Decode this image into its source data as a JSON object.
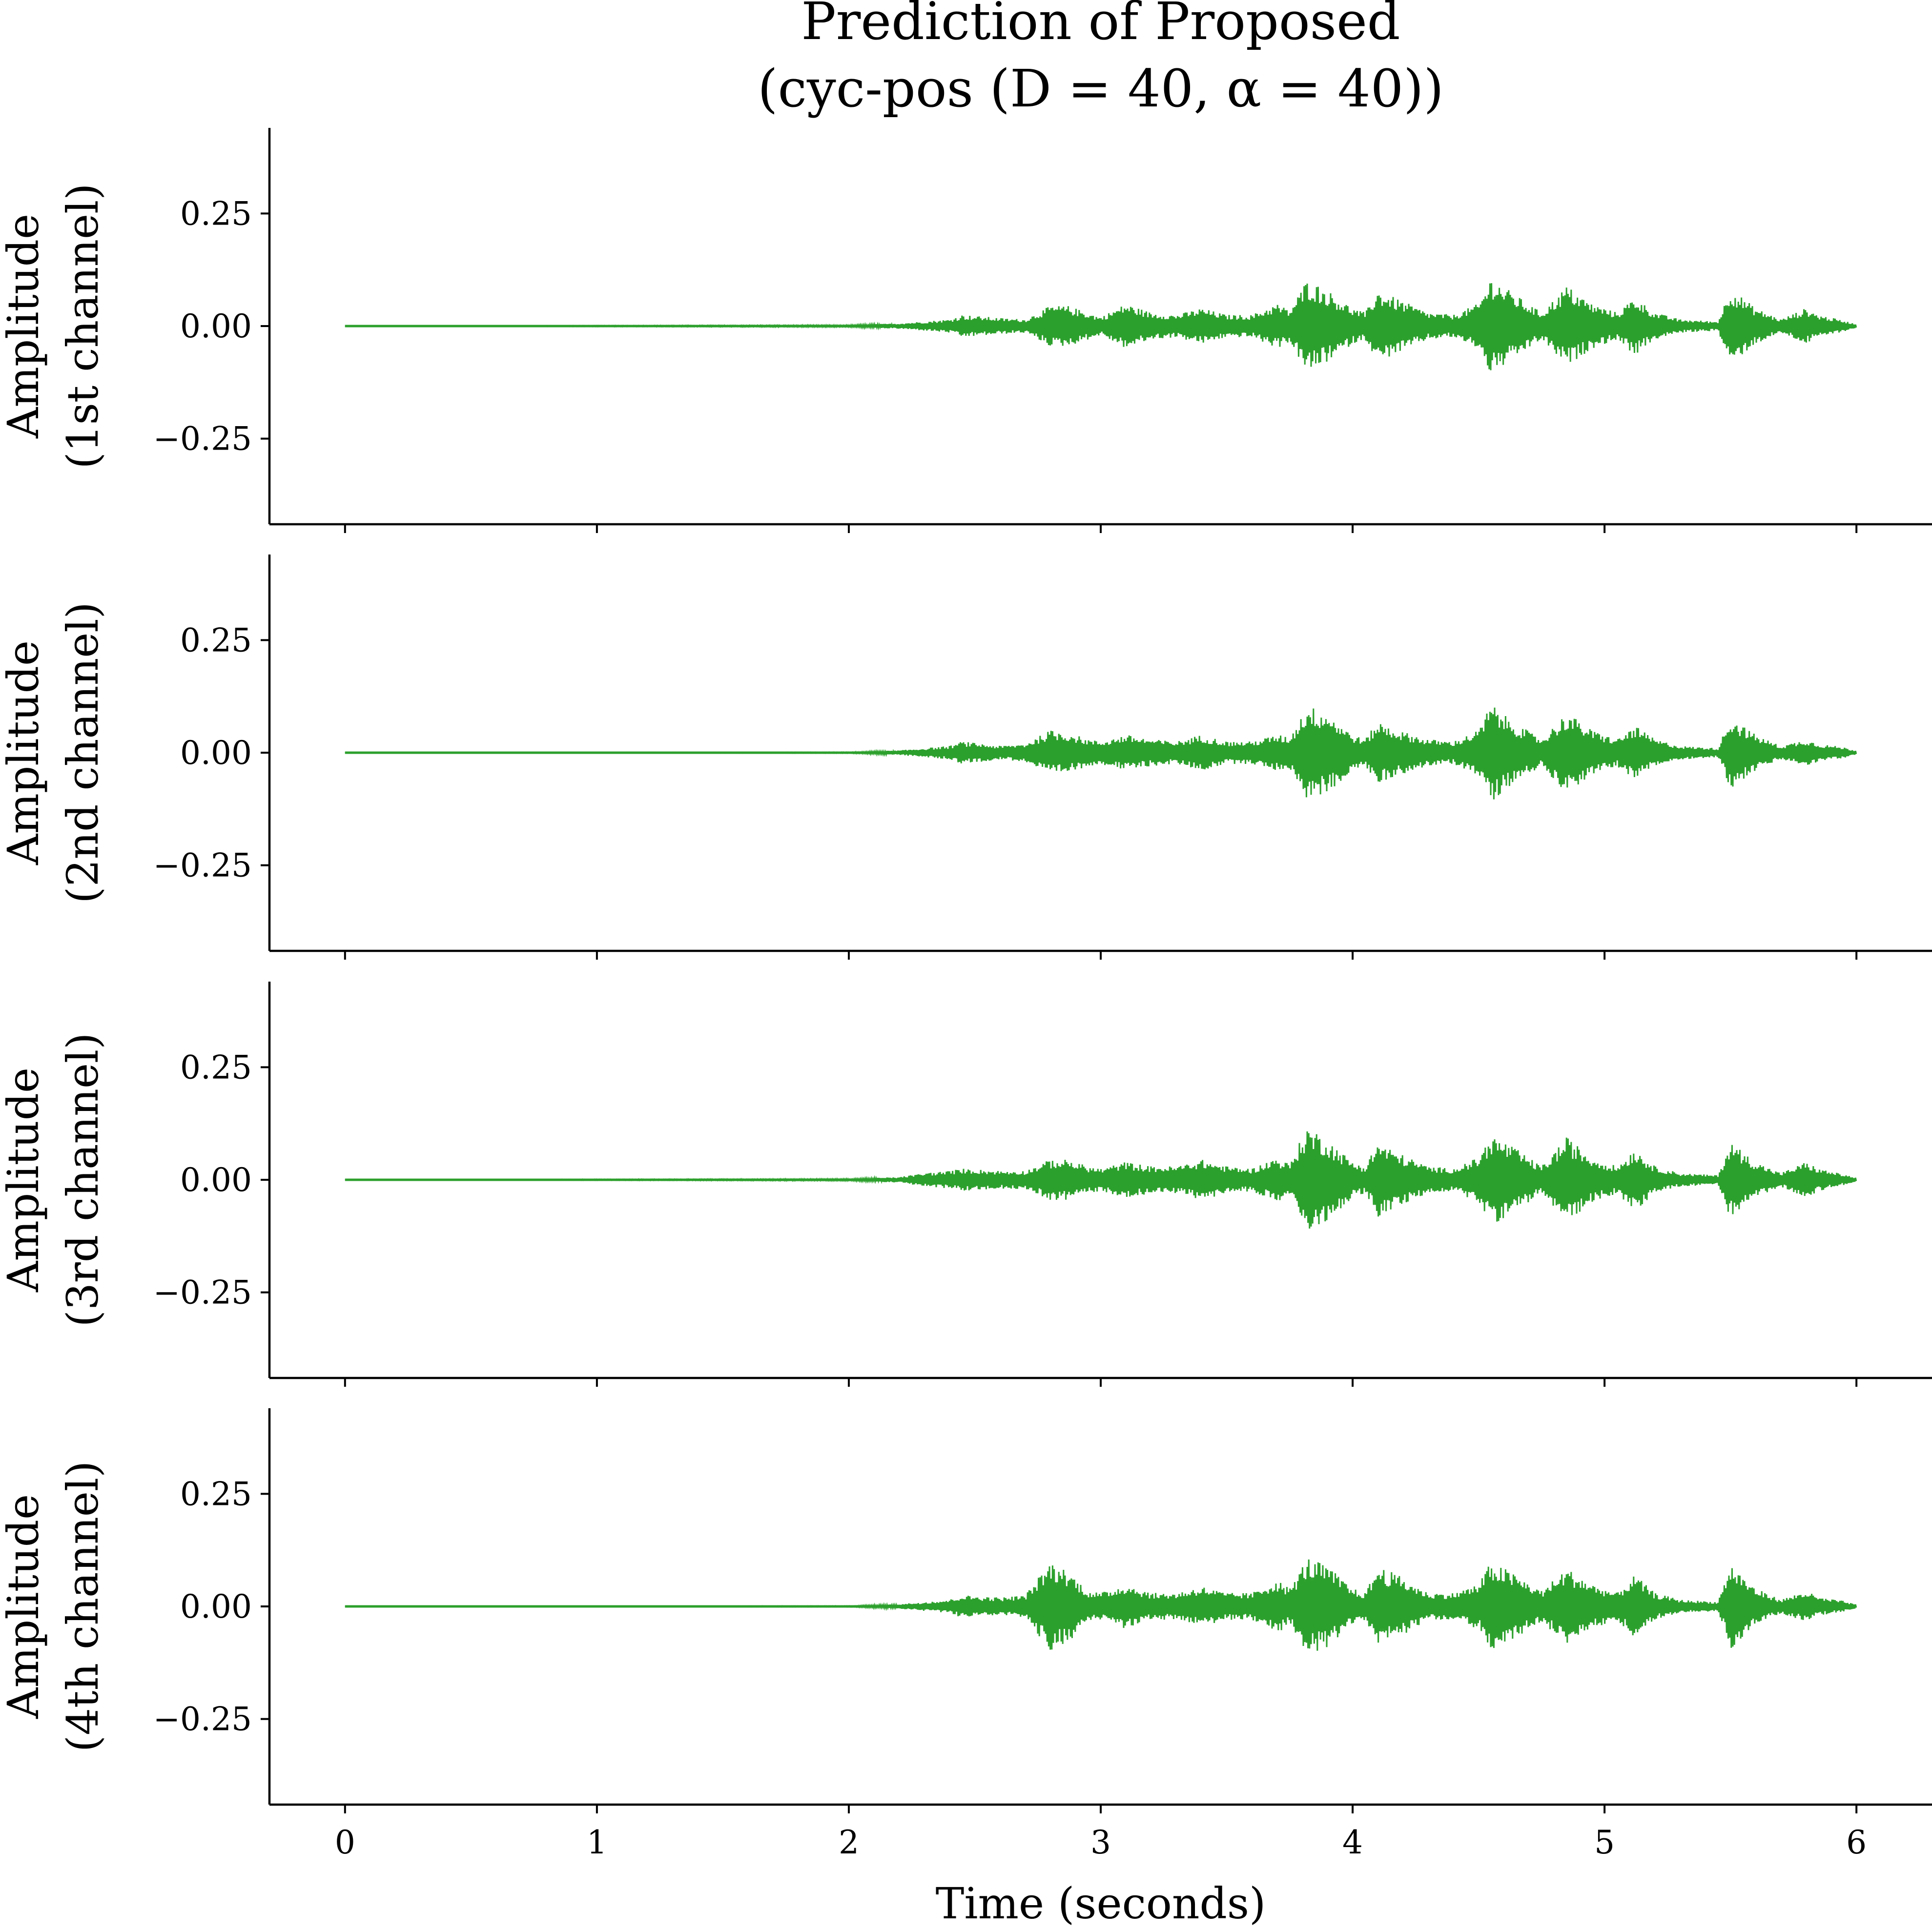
{
  "chart_data": {
    "type": "line",
    "title": "Prediction of Proposed",
    "subtitle": "(cyc-pos (D = 40, α = 40))",
    "xlabel": "Time (seconds)",
    "xlim": [
      -0.3,
      6.3
    ],
    "xticks": [
      0,
      1,
      2,
      3,
      4,
      5,
      6
    ],
    "xtick_labels": [
      "0",
      "1",
      "2",
      "3",
      "4",
      "5",
      "6"
    ],
    "ylim": [
      -0.44,
      0.44
    ],
    "yticks": [
      0.25,
      0.0,
      -0.25
    ],
    "ytick_labels": [
      "0.25",
      "0.00",
      "−0.25"
    ],
    "line_color": "#2ca02c",
    "grid": false,
    "panels": [
      {
        "ylabel_line1": "Amplitude",
        "ylabel_line2": "(1st channel)",
        "envelope": [
          [
            0.0,
            0.0
          ],
          [
            2.0,
            0.002
          ],
          [
            2.2,
            0.006
          ],
          [
            2.3,
            0.01
          ],
          [
            2.4,
            0.015
          ],
          [
            2.45,
            0.025
          ],
          [
            2.6,
            0.018
          ],
          [
            2.7,
            0.015
          ],
          [
            2.8,
            0.045
          ],
          [
            2.87,
            0.045
          ],
          [
            2.95,
            0.03
          ],
          [
            3.0,
            0.02
          ],
          [
            3.1,
            0.05
          ],
          [
            3.2,
            0.03
          ],
          [
            3.3,
            0.025
          ],
          [
            3.4,
            0.04
          ],
          [
            3.5,
            0.025
          ],
          [
            3.6,
            0.025
          ],
          [
            3.7,
            0.05
          ],
          [
            3.75,
            0.035
          ],
          [
            3.82,
            0.105
          ],
          [
            3.9,
            0.08
          ],
          [
            4.0,
            0.04
          ],
          [
            4.05,
            0.03
          ],
          [
            4.1,
            0.08
          ],
          [
            4.18,
            0.06
          ],
          [
            4.3,
            0.03
          ],
          [
            4.4,
            0.025
          ],
          [
            4.5,
            0.05
          ],
          [
            4.55,
            0.11
          ],
          [
            4.62,
            0.08
          ],
          [
            4.75,
            0.03
          ],
          [
            4.85,
            0.09
          ],
          [
            4.95,
            0.05
          ],
          [
            5.05,
            0.03
          ],
          [
            5.12,
            0.065
          ],
          [
            5.2,
            0.03
          ],
          [
            5.3,
            0.015
          ],
          [
            5.45,
            0.01
          ],
          [
            5.5,
            0.085
          ],
          [
            5.6,
            0.04
          ],
          [
            5.7,
            0.015
          ],
          [
            5.8,
            0.04
          ],
          [
            5.85,
            0.025
          ],
          [
            5.95,
            0.012
          ],
          [
            6.0,
            0.004
          ]
        ]
      },
      {
        "ylabel_line1": "Amplitude",
        "ylabel_line2": "(2nd channel)",
        "envelope": [
          [
            0.0,
            0.0
          ],
          [
            2.0,
            0.001
          ],
          [
            2.2,
            0.005
          ],
          [
            2.3,
            0.01
          ],
          [
            2.4,
            0.015
          ],
          [
            2.45,
            0.025
          ],
          [
            2.6,
            0.015
          ],
          [
            2.7,
            0.02
          ],
          [
            2.8,
            0.05
          ],
          [
            2.87,
            0.045
          ],
          [
            2.95,
            0.03
          ],
          [
            3.0,
            0.025
          ],
          [
            3.1,
            0.04
          ],
          [
            3.2,
            0.03
          ],
          [
            3.3,
            0.025
          ],
          [
            3.4,
            0.04
          ],
          [
            3.5,
            0.025
          ],
          [
            3.6,
            0.025
          ],
          [
            3.7,
            0.04
          ],
          [
            3.75,
            0.035
          ],
          [
            3.82,
            0.105
          ],
          [
            3.9,
            0.09
          ],
          [
            4.0,
            0.04
          ],
          [
            4.05,
            0.03
          ],
          [
            4.1,
            0.07
          ],
          [
            4.18,
            0.05
          ],
          [
            4.3,
            0.03
          ],
          [
            4.4,
            0.025
          ],
          [
            4.5,
            0.05
          ],
          [
            4.55,
            0.11
          ],
          [
            4.62,
            0.075
          ],
          [
            4.75,
            0.03
          ],
          [
            4.85,
            0.09
          ],
          [
            4.95,
            0.05
          ],
          [
            5.05,
            0.03
          ],
          [
            5.12,
            0.06
          ],
          [
            5.2,
            0.03
          ],
          [
            5.3,
            0.015
          ],
          [
            5.45,
            0.01
          ],
          [
            5.5,
            0.08
          ],
          [
            5.6,
            0.04
          ],
          [
            5.7,
            0.015
          ],
          [
            5.8,
            0.03
          ],
          [
            5.85,
            0.02
          ],
          [
            5.95,
            0.012
          ],
          [
            6.0,
            0.004
          ]
        ]
      },
      {
        "ylabel_line1": "Amplitude",
        "ylabel_line2": "(3rd channel)",
        "envelope": [
          [
            0.0,
            0.0
          ],
          [
            2.0,
            0.002
          ],
          [
            2.2,
            0.006
          ],
          [
            2.3,
            0.015
          ],
          [
            2.4,
            0.02
          ],
          [
            2.45,
            0.025
          ],
          [
            2.6,
            0.02
          ],
          [
            2.7,
            0.02
          ],
          [
            2.8,
            0.045
          ],
          [
            2.87,
            0.045
          ],
          [
            2.95,
            0.03
          ],
          [
            3.0,
            0.025
          ],
          [
            3.1,
            0.04
          ],
          [
            3.2,
            0.03
          ],
          [
            3.3,
            0.03
          ],
          [
            3.4,
            0.045
          ],
          [
            3.5,
            0.03
          ],
          [
            3.6,
            0.025
          ],
          [
            3.7,
            0.05
          ],
          [
            3.75,
            0.035
          ],
          [
            3.82,
            0.12
          ],
          [
            3.9,
            0.09
          ],
          [
            4.0,
            0.04
          ],
          [
            4.05,
            0.03
          ],
          [
            4.1,
            0.085
          ],
          [
            4.18,
            0.06
          ],
          [
            4.3,
            0.03
          ],
          [
            4.4,
            0.025
          ],
          [
            4.5,
            0.05
          ],
          [
            4.55,
            0.1
          ],
          [
            4.62,
            0.08
          ],
          [
            4.75,
            0.03
          ],
          [
            4.85,
            0.095
          ],
          [
            4.95,
            0.05
          ],
          [
            5.05,
            0.03
          ],
          [
            5.12,
            0.07
          ],
          [
            5.2,
            0.03
          ],
          [
            5.3,
            0.015
          ],
          [
            5.45,
            0.01
          ],
          [
            5.5,
            0.085
          ],
          [
            5.6,
            0.04
          ],
          [
            5.7,
            0.015
          ],
          [
            5.8,
            0.04
          ],
          [
            5.85,
            0.025
          ],
          [
            5.95,
            0.012
          ],
          [
            6.0,
            0.004
          ]
        ]
      },
      {
        "ylabel_line1": "Amplitude",
        "ylabel_line2": "(4th channel)",
        "envelope": [
          [
            0.0,
            0.0
          ],
          [
            2.0,
            0.001
          ],
          [
            2.2,
            0.005
          ],
          [
            2.3,
            0.01
          ],
          [
            2.4,
            0.015
          ],
          [
            2.45,
            0.025
          ],
          [
            2.6,
            0.02
          ],
          [
            2.7,
            0.025
          ],
          [
            2.8,
            0.1
          ],
          [
            2.87,
            0.08
          ],
          [
            2.95,
            0.035
          ],
          [
            3.0,
            0.03
          ],
          [
            3.1,
            0.05
          ],
          [
            3.2,
            0.03
          ],
          [
            3.3,
            0.03
          ],
          [
            3.4,
            0.045
          ],
          [
            3.5,
            0.03
          ],
          [
            3.6,
            0.03
          ],
          [
            3.7,
            0.06
          ],
          [
            3.75,
            0.04
          ],
          [
            3.82,
            0.11
          ],
          [
            3.9,
            0.09
          ],
          [
            4.0,
            0.04
          ],
          [
            4.05,
            0.03
          ],
          [
            4.1,
            0.09
          ],
          [
            4.18,
            0.07
          ],
          [
            4.3,
            0.03
          ],
          [
            4.4,
            0.03
          ],
          [
            4.5,
            0.05
          ],
          [
            4.55,
            0.1
          ],
          [
            4.62,
            0.08
          ],
          [
            4.75,
            0.035
          ],
          [
            4.85,
            0.085
          ],
          [
            4.95,
            0.05
          ],
          [
            5.05,
            0.03
          ],
          [
            5.12,
            0.07
          ],
          [
            5.2,
            0.03
          ],
          [
            5.3,
            0.015
          ],
          [
            5.45,
            0.01
          ],
          [
            5.5,
            0.095
          ],
          [
            5.6,
            0.04
          ],
          [
            5.7,
            0.015
          ],
          [
            5.8,
            0.035
          ],
          [
            5.85,
            0.02
          ],
          [
            5.95,
            0.012
          ],
          [
            6.0,
            0.004
          ]
        ]
      }
    ]
  }
}
